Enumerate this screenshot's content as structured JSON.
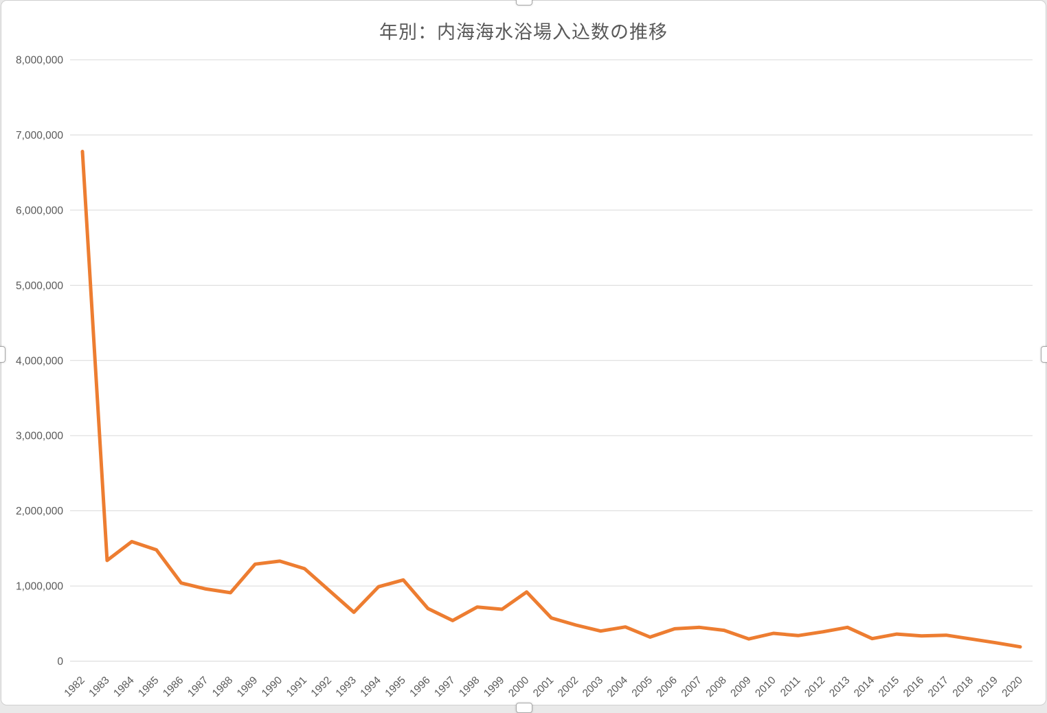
{
  "chart_data": {
    "type": "line",
    "title": "年別：内海海水浴場入込数の推移",
    "categories": [
      "1982",
      "1983",
      "1984",
      "1985",
      "1986",
      "1987",
      "1988",
      "1989",
      "1990",
      "1991",
      "1992",
      "1993",
      "1994",
      "1995",
      "1996",
      "1997",
      "1998",
      "1999",
      "2000",
      "2001",
      "2002",
      "2003",
      "2004",
      "2005",
      "2006",
      "2007",
      "2008",
      "2009",
      "2010",
      "2011",
      "2012",
      "2013",
      "2014",
      "2015",
      "2016",
      "2017",
      "2018",
      "2019",
      "2020"
    ],
    "values": [
      6780000,
      1340000,
      1590000,
      1480000,
      1040000,
      960000,
      910000,
      1290000,
      1330000,
      1230000,
      940000,
      650000,
      990000,
      1080000,
      700000,
      540000,
      720000,
      690000,
      920000,
      575000,
      480000,
      400000,
      455000,
      320000,
      430000,
      450000,
      410000,
      295000,
      370000,
      340000,
      390000,
      450000,
      300000,
      360000,
      335000,
      345000,
      295000,
      245000,
      190000
    ],
    "xlabel": "",
    "ylabel": "",
    "ylim": [
      0,
      8000000
    ],
    "ytick_interval": 1000000,
    "ytick_labels": [
      "0",
      "1,000,000",
      "2,000,000",
      "3,000,000",
      "4,000,000",
      "5,000,000",
      "6,000,000",
      "7,000,000",
      "8,000,000"
    ],
    "grid": true,
    "legend_position": "none",
    "line_color": "#ED7D31",
    "gridline_color": "#D9D9D9",
    "axis_text_color": "#595959",
    "frame_border_color": "#CFCFCF"
  }
}
